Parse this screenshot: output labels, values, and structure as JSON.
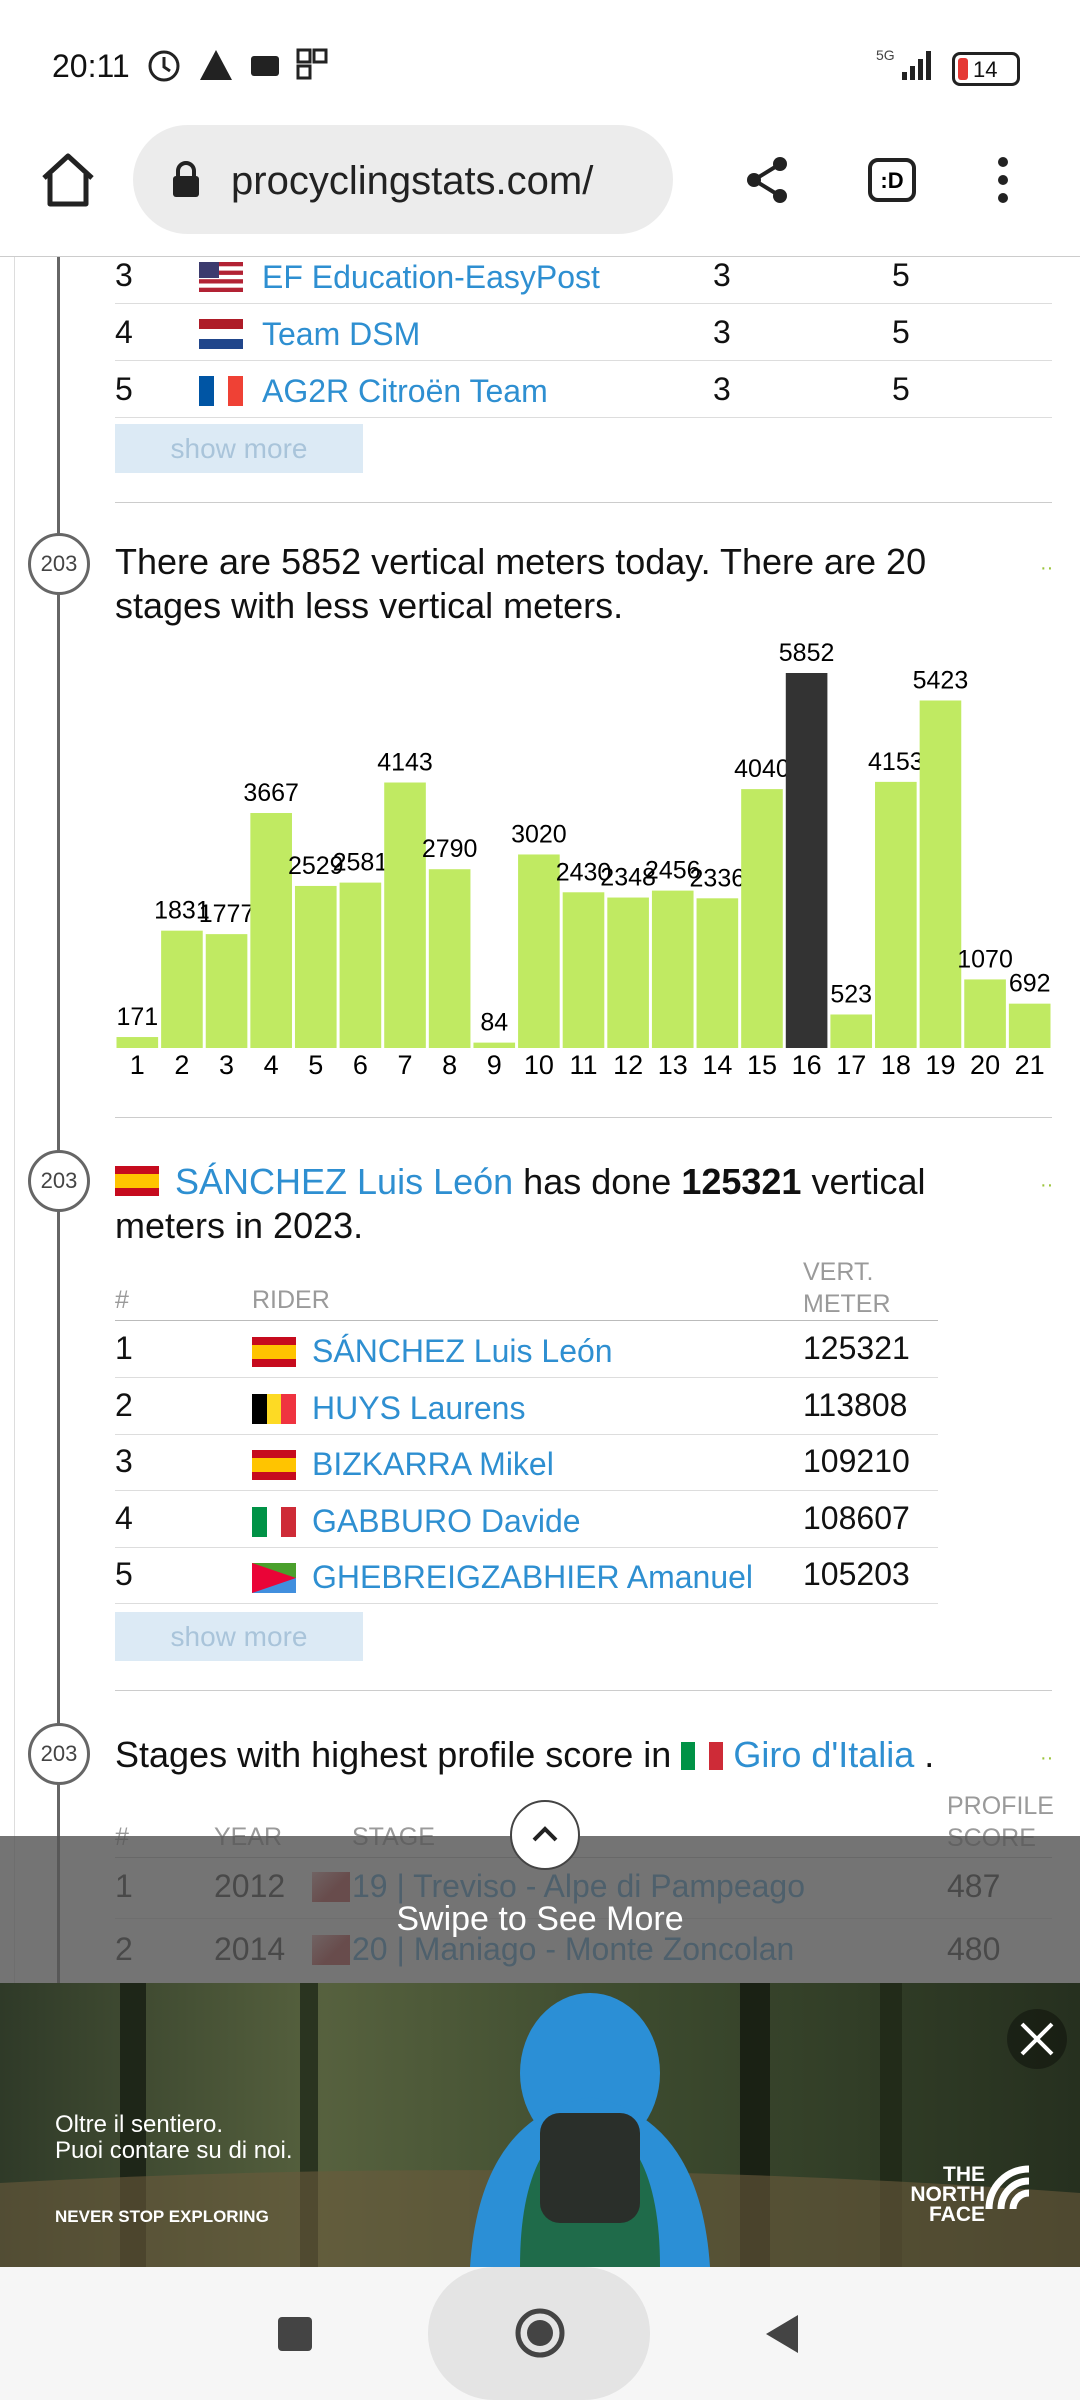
{
  "status_bar": {
    "time": "20:11",
    "network": "5G",
    "battery": "14"
  },
  "browser": {
    "url": "procyclingstats.com/"
  },
  "teams_table": {
    "rows": [
      [
        "3",
        "EF Education-EasyPost",
        "3",
        "5"
      ],
      [
        "4",
        "Team DSM",
        "3",
        "5"
      ],
      [
        "5",
        "AG2R Citroën Team",
        "3",
        "5"
      ]
    ],
    "show_more": "show more"
  },
  "vertical_card": {
    "badge": "203",
    "text": "There are 5852 vertical meters today. There are 20 stages with less vertical meters.",
    "chart_data": {
      "type": "bar",
      "categories": [
        "1",
        "2",
        "3",
        "4",
        "5",
        "6",
        "7",
        "8",
        "9",
        "10",
        "11",
        "12",
        "13",
        "14",
        "15",
        "16",
        "17",
        "18",
        "19",
        "20",
        "21"
      ],
      "values": [
        171,
        1831,
        1777,
        3667,
        2529,
        2581,
        4143,
        2790,
        84,
        3020,
        2430,
        2348,
        2456,
        2336,
        4040,
        5852,
        523,
        4153,
        5423,
        1070,
        692
      ],
      "colors": [
        "#c0ea62",
        "#c0ea62",
        "#c0ea62",
        "#c0ea62",
        "#c0ea62",
        "#c0ea62",
        "#c0ea62",
        "#c0ea62",
        "#c0ea62",
        "#c0ea62",
        "#c0ea62",
        "#c0ea62",
        "#c0ea62",
        "#c0ea62",
        "#c0ea62",
        "#333333",
        "#c0ea62",
        "#c0ea62",
        "#c0ea62",
        "#c0ea62",
        "#c0ea62"
      ]
    }
  },
  "rider_card": {
    "badge": "203",
    "rider": "SÁNCHEZ Luis León",
    "text_1": "has done",
    "value": "125321",
    "text_2": "vertical meters in 2023.",
    "table": {
      "headers": [
        "#",
        "RIDER",
        "VERT. METER"
      ],
      "rows": [
        [
          "1",
          "SÁNCHEZ Luis León",
          "125321"
        ],
        [
          "2",
          "HUYS Laurens",
          "113808"
        ],
        [
          "3",
          "BIZKARRA Mikel",
          "109210"
        ],
        [
          "4",
          "GABBURO Davide",
          "108607"
        ],
        [
          "5",
          "GHEBREIGZABHIER Amanuel",
          "105203"
        ]
      ]
    },
    "show_more": "show more"
  },
  "profile_card": {
    "badge": "203",
    "text": "Stages with highest profile score in",
    "race": "Giro d'Italia",
    "end": ".",
    "table": {
      "headers": [
        "#",
        "YEAR",
        "STAGE",
        "PROFILE SCORE"
      ],
      "rows": [
        [
          "1",
          "2012",
          "19 | Treviso - Alpe di Pampeago",
          "487"
        ],
        [
          "2",
          "2014",
          "20 | Maniago - Monte Zoncolan",
          "480"
        ]
      ]
    }
  },
  "overlay": {
    "text": "Swipe to See More"
  },
  "ad": {
    "line_1": "Oltre il sentiero.",
    "line_2": "Puoi contare su di noi.",
    "slogan": "NEVER STOP EXPLORING",
    "brand": "THE NORTH FACE"
  }
}
